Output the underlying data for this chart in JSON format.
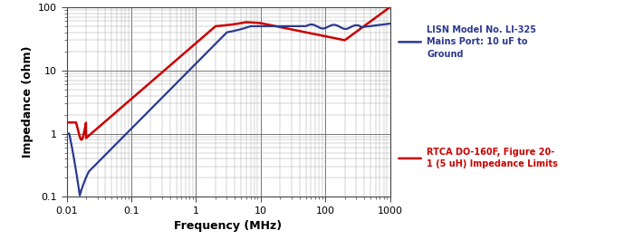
{
  "xlabel": "Frequency (MHz)",
  "ylabel": "Impedance (ohm)",
  "xlim": [
    0.01,
    1000
  ],
  "ylim": [
    0.1,
    100
  ],
  "background_color": "#ffffff",
  "grid_color": "#777777",
  "grid_minor_color": "#aaaaaa",
  "blue_color": "#2B3990",
  "red_color": "#CC0000",
  "legend_blue": "LISN Model No. LI-325\nMains Port: 10 uF to\nGround",
  "legend_red": "RTCA DO-160F, Figure 20-\n1 (5 uH) Impedance Limits",
  "legend_blue_color": "#2B3990",
  "legend_red_color": "#CC0000"
}
